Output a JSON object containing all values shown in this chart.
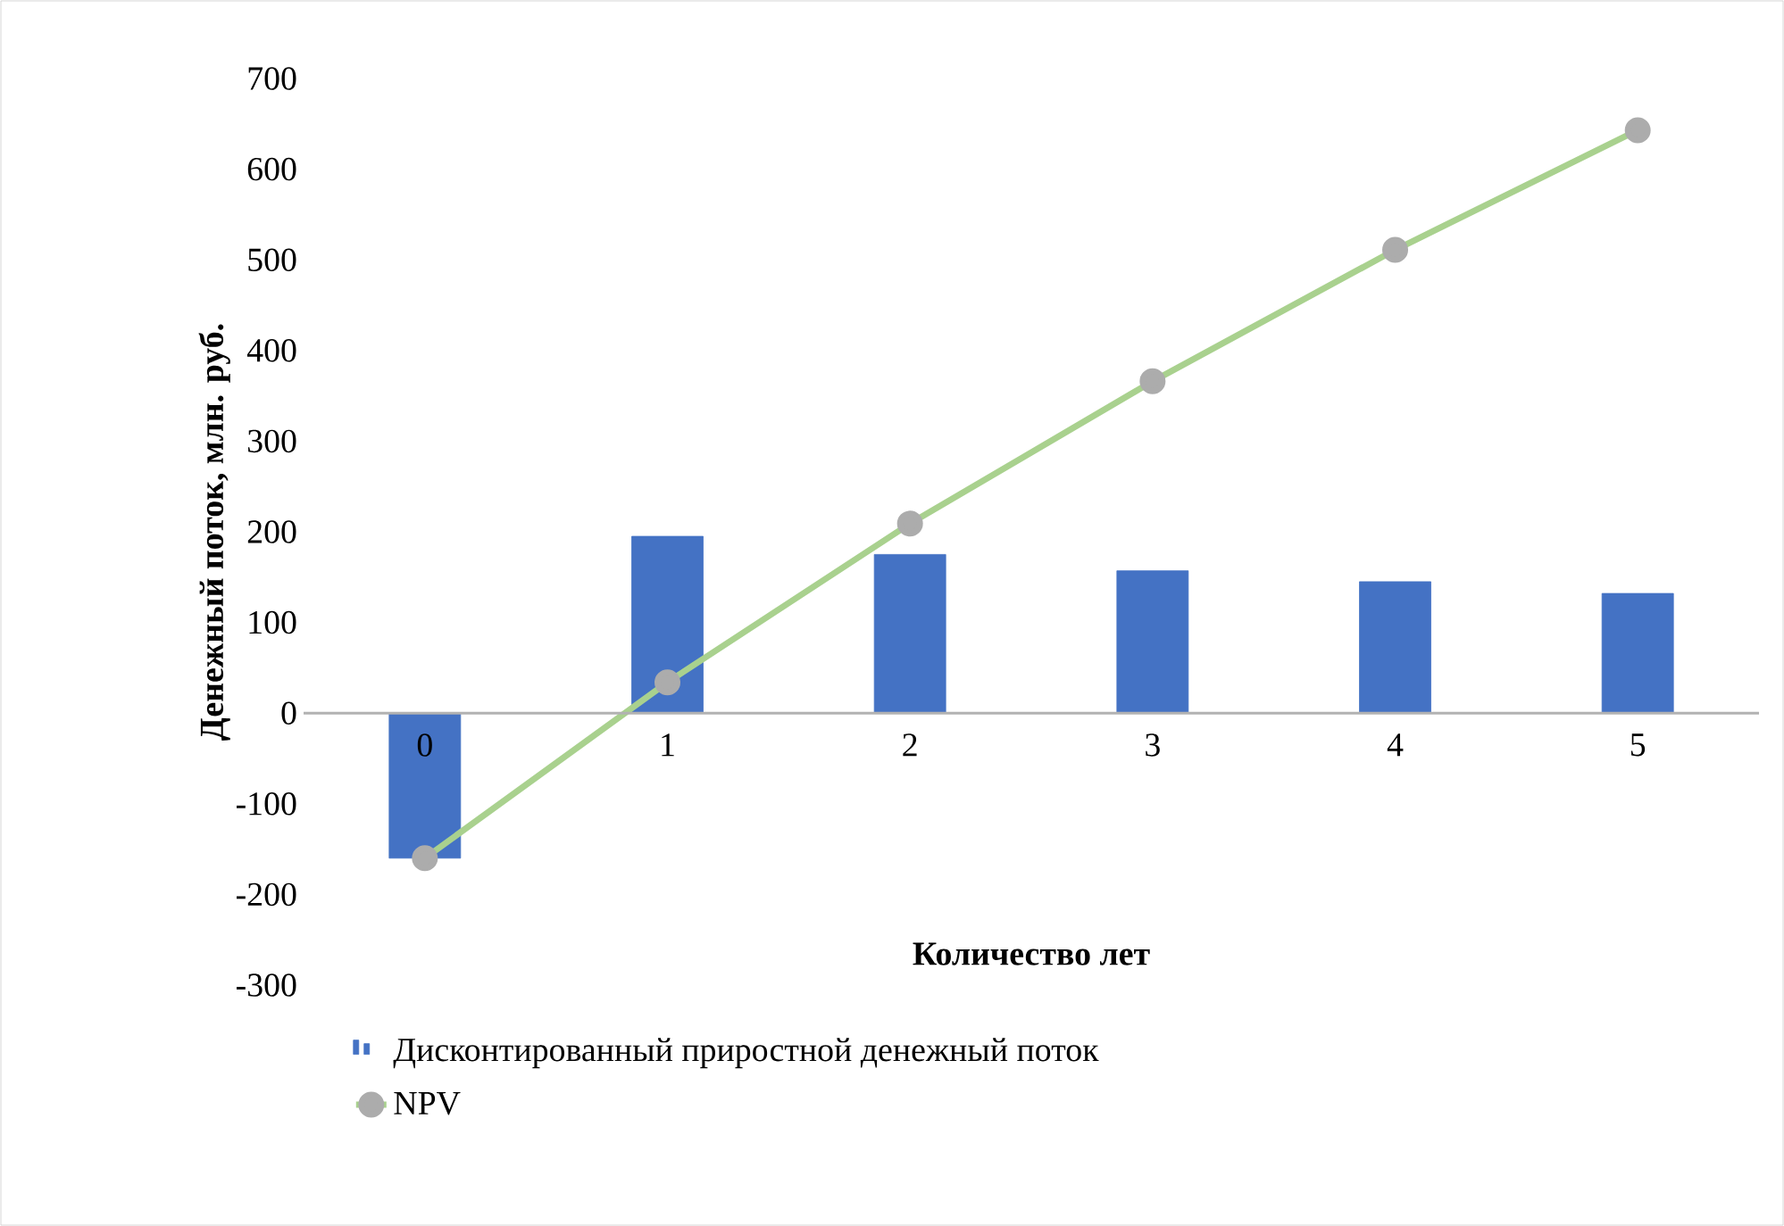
{
  "chart_data": {
    "type": "bar",
    "xlabel": "Количество лет",
    "ylabel": "Денежный поток, млн. руб.",
    "categories": [
      "0",
      "1",
      "2",
      "3",
      "4",
      "5"
    ],
    "ylim": [
      -300,
      700
    ],
    "yticks": [
      -300,
      -200,
      -100,
      0,
      100,
      200,
      300,
      400,
      500,
      600,
      700
    ],
    "legend": "bottom",
    "marker": "circle",
    "grid": false,
    "series": [
      {
        "name": "Дисконтированный приростной денежный поток",
        "color": "#4472c4",
        "values": [
          -160,
          195,
          175,
          157,
          145,
          132
        ]
      },
      {
        "name": "NPV",
        "type": "line",
        "color": "#a9d18e",
        "values": [
          -160,
          34,
          209,
          366,
          511,
          643
        ]
      }
    ]
  }
}
